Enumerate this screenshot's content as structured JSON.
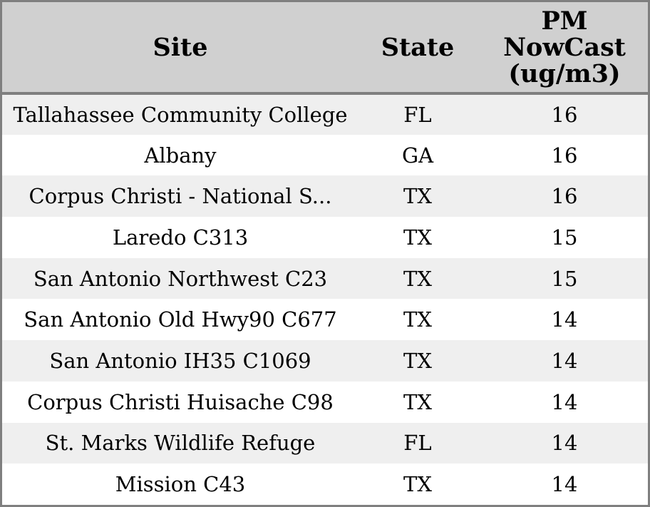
{
  "chart_data": {
    "type": "table",
    "title": "",
    "columns": [
      "Site",
      "State",
      "PM NowCast (ug/m3)"
    ],
    "rows": [
      {
        "site": "Tallahassee Community College",
        "state": "FL",
        "pm_nowcast": 16
      },
      {
        "site": "Albany",
        "state": "GA",
        "pm_nowcast": 16
      },
      {
        "site": "Corpus Christi - National S...",
        "state": "TX",
        "pm_nowcast": 16
      },
      {
        "site": "Laredo C313",
        "state": "TX",
        "pm_nowcast": 15
      },
      {
        "site": "San Antonio Northwest C23",
        "state": "TX",
        "pm_nowcast": 15
      },
      {
        "site": "San Antonio Old Hwy90 C677",
        "state": "TX",
        "pm_nowcast": 14
      },
      {
        "site": "San Antonio IH35 C1069",
        "state": "TX",
        "pm_nowcast": 14
      },
      {
        "site": "Corpus Christi Huisache C98",
        "state": "TX",
        "pm_nowcast": 14
      },
      {
        "site": "St. Marks Wildlife Refuge",
        "state": "FL",
        "pm_nowcast": 14
      },
      {
        "site": "Mission C43",
        "state": "TX",
        "pm_nowcast": 14
      }
    ],
    "layout": {
      "grid": false,
      "row_striping": true,
      "alignment": "center"
    }
  },
  "ui": {
    "header_labels": [
      "Site",
      "State",
      "PM\nNowCast\n(ug/m3)"
    ]
  },
  "colors": {
    "header_bg": "#d0d0d0",
    "row_alt_bg": "#efefef",
    "row_bg": "#ffffff",
    "border": "#7f7f7f",
    "text": "#000000"
  }
}
